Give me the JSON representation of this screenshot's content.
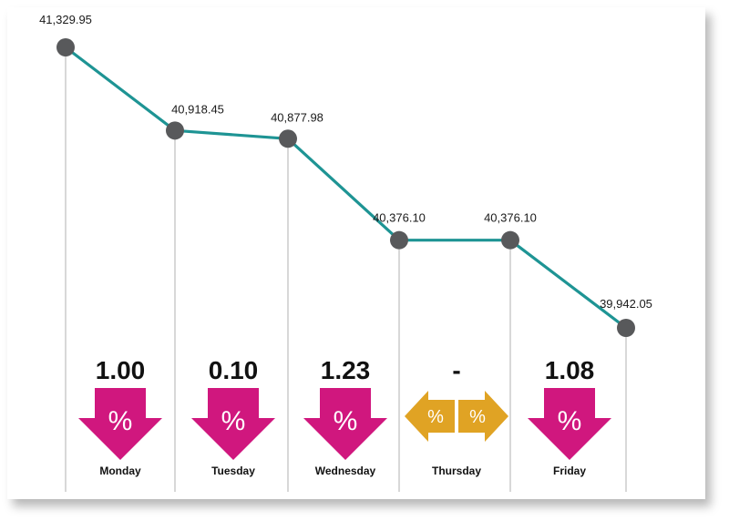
{
  "chart_data": {
    "type": "line",
    "title": "",
    "xlabel": "",
    "ylabel": "",
    "ylim": [
      39800,
      41400
    ],
    "points": [
      {
        "label": "41,329.95",
        "value": 41329.95
      },
      {
        "label": "40,918.45",
        "value": 40918.45
      },
      {
        "label": "40,877.98",
        "value": 40877.98
      },
      {
        "label": "40,376.10",
        "value": 40376.1
      },
      {
        "label": "40,376.10",
        "value": 40376.1
      },
      {
        "label": "39,942.05",
        "value": 39942.05
      }
    ],
    "days": [
      {
        "name": "Monday",
        "change": "1.00",
        "direction": "down"
      },
      {
        "name": "Tuesday",
        "change": "0.10",
        "direction": "down"
      },
      {
        "name": "Wednesday",
        "change": "1.23",
        "direction": "down"
      },
      {
        "name": "Thursday",
        "change": "-",
        "direction": "flat"
      },
      {
        "name": "Friday",
        "change": "1.08",
        "direction": "down"
      }
    ],
    "symbol": "%"
  },
  "colors": {
    "line": "#1e9494",
    "marker": "#58595b",
    "down": "#d0177e",
    "flat": "#e0a324",
    "gridline": "#b0b0b0"
  }
}
